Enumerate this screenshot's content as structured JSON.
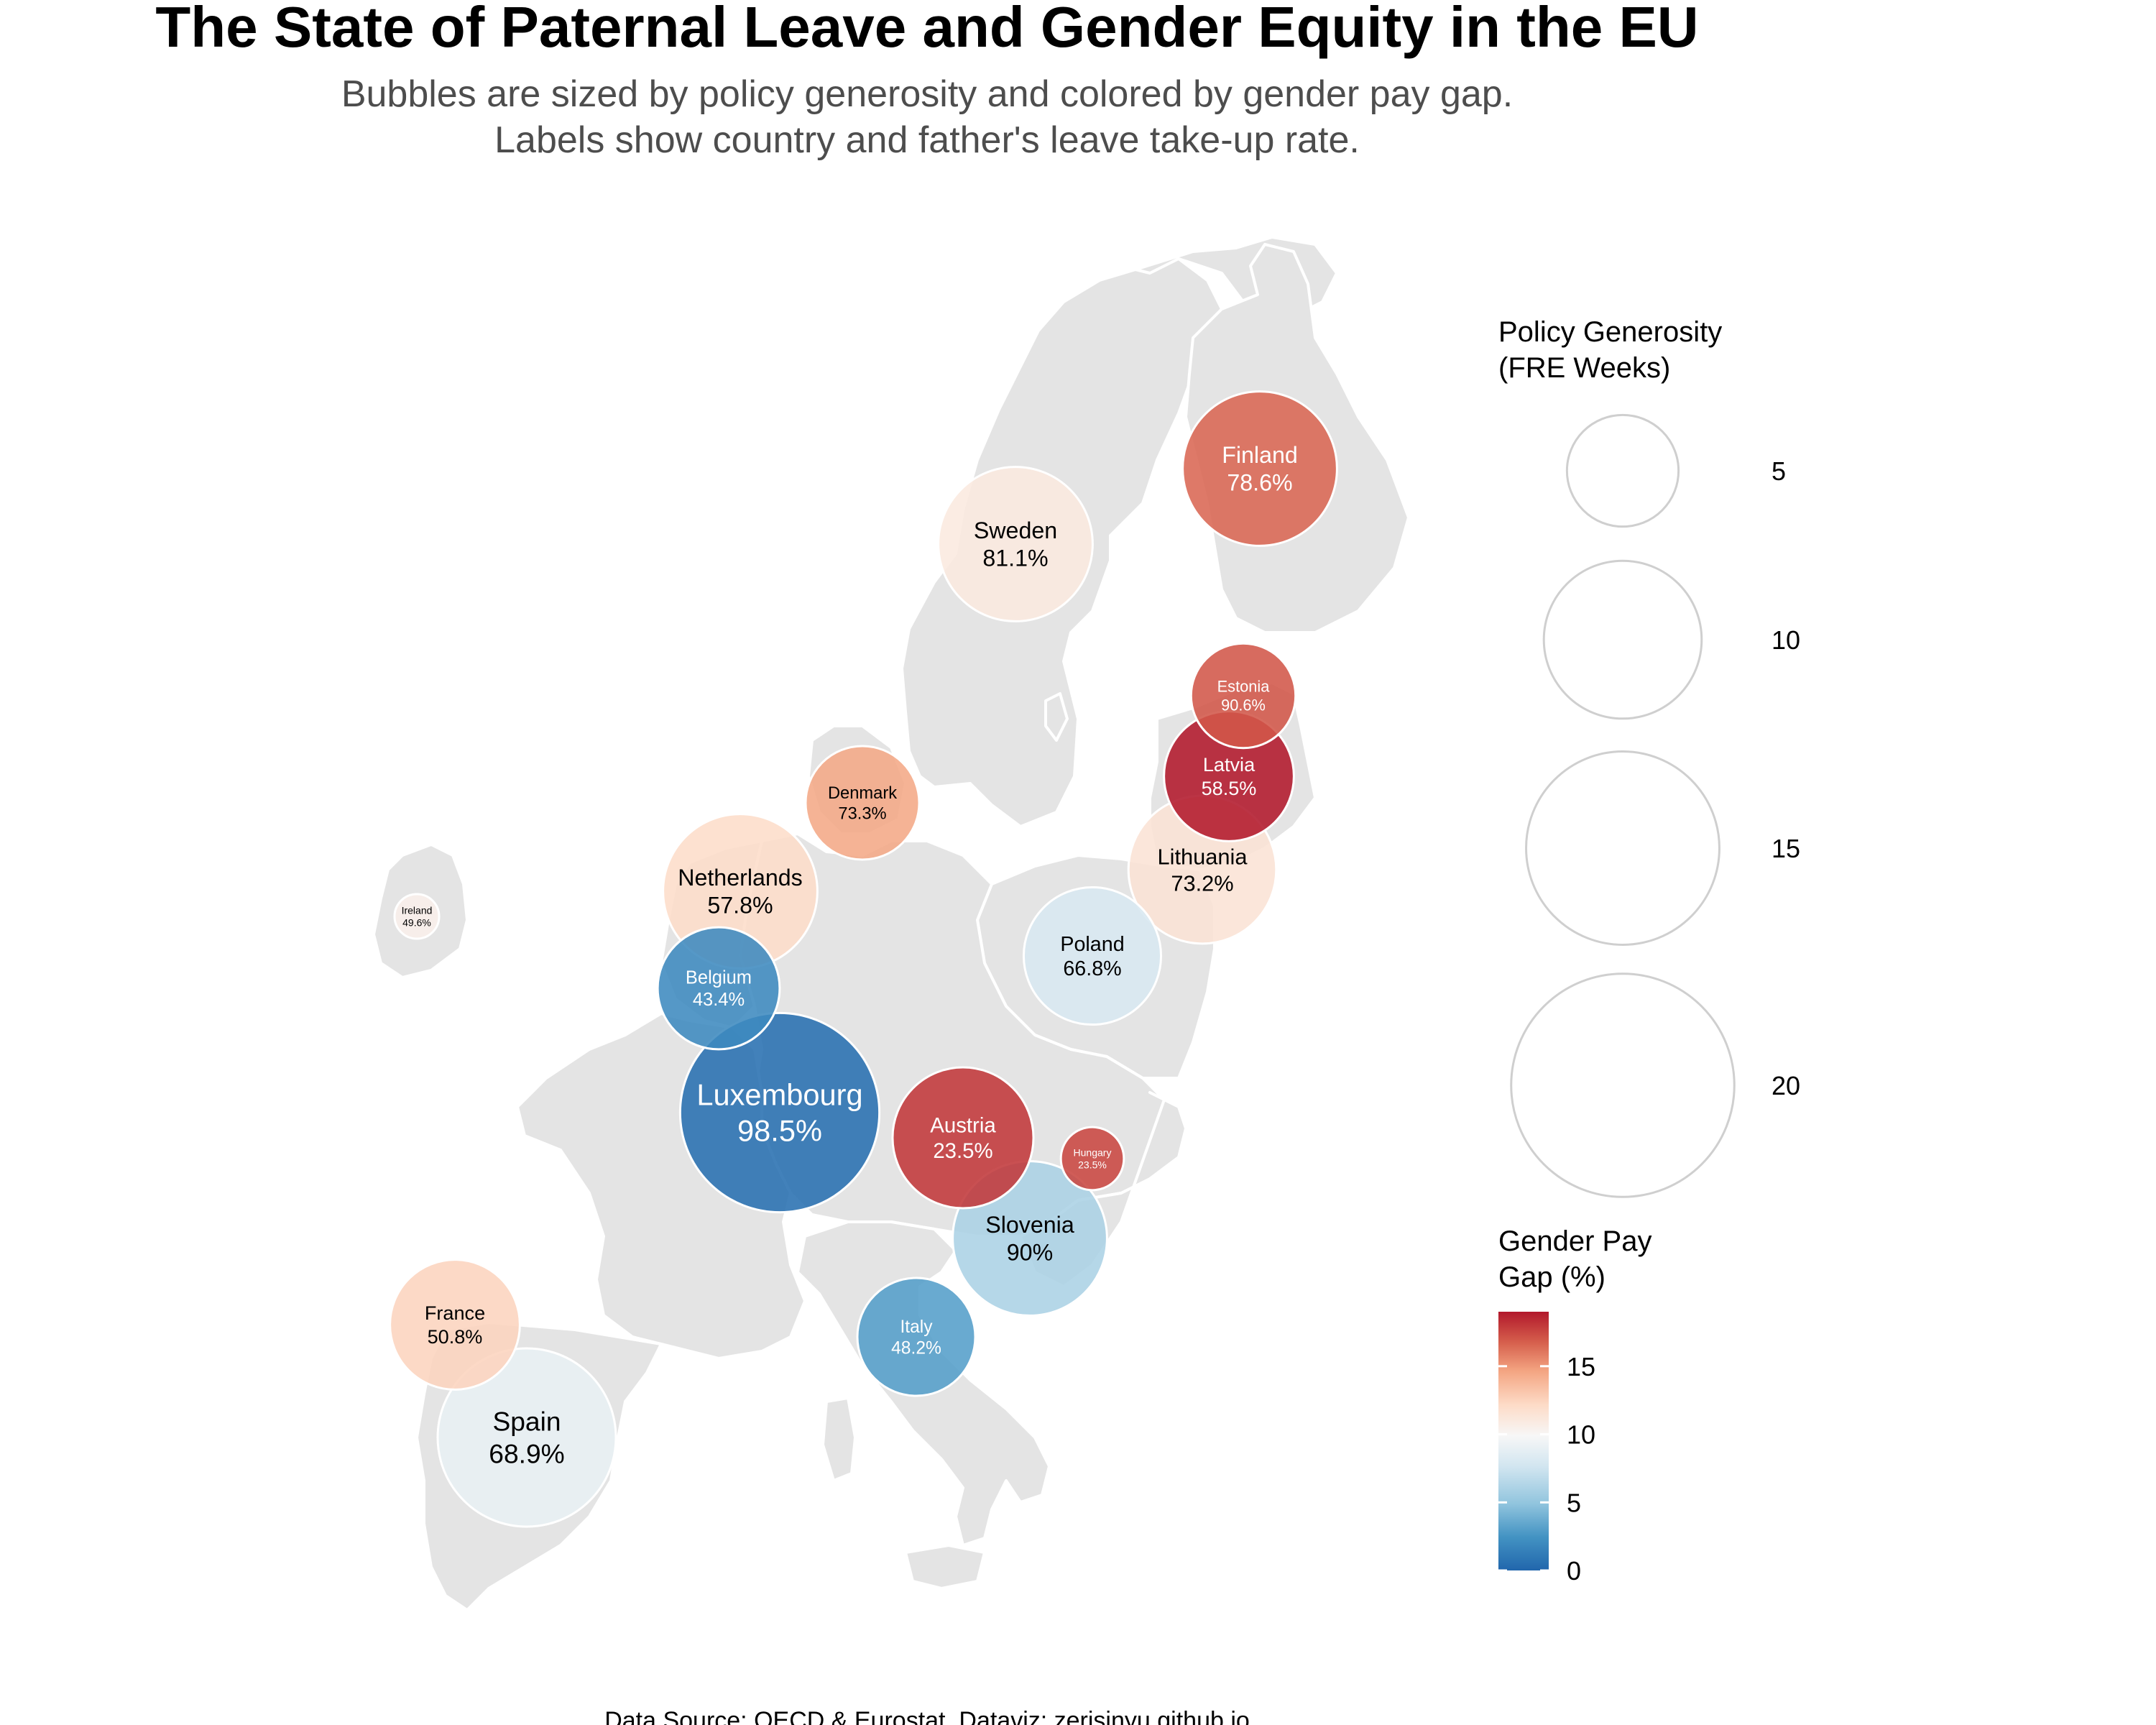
{
  "title": "The State of Paternal Leave and Gender Equity in the EU",
  "subtitle_line1": "Bubbles are sized by policy generosity and colored by gender pay gap.",
  "subtitle_line2": "Labels show country and father's leave take-up rate.",
  "caption": "Data Source: OECD & Eurostat, Dataviz: zerisinyu.github.io",
  "colors": {
    "land": "#e4e4e4",
    "border": "#ffffff",
    "bubble_outline": "#ffffff",
    "legend_circle": "#cfcfcf",
    "scale_low": "#2166ac",
    "scale_mid": "#f7f7f7",
    "scale_high": "#b2182b"
  },
  "chart_data": {
    "type": "map-bubble",
    "legend_size": {
      "title_line1": "Policy Generosity",
      "title_line2": "(FRE Weeks)",
      "breaks": [
        5,
        10,
        15,
        20
      ],
      "labels": [
        "5",
        "10",
        "15",
        "20"
      ]
    },
    "legend_color": {
      "title_line1": "Gender Pay",
      "title_line2": "Gap (%)",
      "ticks": [
        0,
        5,
        10,
        15
      ],
      "labels": [
        "0",
        "5",
        "10",
        "15"
      ],
      "range": [
        0,
        19
      ]
    },
    "points": [
      {
        "country": "Luxembourg",
        "take_up_label": "98.5%",
        "take_up": 98.5,
        "fre_weeks": 20,
        "pay_gap": 0.5
      },
      {
        "country": "Spain",
        "take_up_label": "68.9%",
        "take_up": 68.9,
        "fre_weeks": 16,
        "pay_gap": 9
      },
      {
        "country": "Netherlands",
        "take_up_label": "57.8%",
        "take_up": 57.8,
        "fre_weeks": 12,
        "pay_gap": 12
      },
      {
        "country": "Finland",
        "take_up_label": "78.6%",
        "take_up": 78.6,
        "fre_weeks": 12,
        "pay_gap": 16.5
      },
      {
        "country": "Sweden",
        "take_up_label": "81.1%",
        "take_up": 81.1,
        "fre_weeks": 12,
        "pay_gap": 11
      },
      {
        "country": "Slovenia",
        "take_up_label": "90%",
        "take_up": 90,
        "fre_weeks": 12,
        "pay_gap": 6
      },
      {
        "country": "Lithuania",
        "take_up_label": "73.2%",
        "take_up": 73.2,
        "fre_weeks": 11,
        "pay_gap": 11.5
      },
      {
        "country": "Austria",
        "take_up_label": "23.5%",
        "take_up": 23.5,
        "fre_weeks": 10,
        "pay_gap": 18
      },
      {
        "country": "Latvia",
        "take_up_label": "58.5%",
        "take_up": 58.5,
        "fre_weeks": 8.5,
        "pay_gap": 19
      },
      {
        "country": "Poland",
        "take_up_label": "66.8%",
        "take_up": 66.8,
        "fre_weeks": 9.5,
        "pay_gap": 8
      },
      {
        "country": "France",
        "take_up_label": "50.8%",
        "take_up": 50.8,
        "fre_weeks": 8.5,
        "pay_gap": 12.5
      },
      {
        "country": "Belgium",
        "take_up_label": "43.4%",
        "take_up": 43.4,
        "fre_weeks": 7.5,
        "pay_gap": 2
      },
      {
        "country": "Italy",
        "take_up_label": "48.2%",
        "take_up": 48.2,
        "fre_weeks": 7,
        "pay_gap": 3
      },
      {
        "country": "Denmark",
        "take_up_label": "73.3%",
        "take_up": 73.3,
        "fre_weeks": 6.5,
        "pay_gap": 14.5
      },
      {
        "country": "Estonia",
        "take_up_label": "90.6%",
        "take_up": 90.6,
        "fre_weeks": 5.5,
        "pay_gap": 17
      },
      {
        "country": "Hungary",
        "take_up_label": "23.5%",
        "take_up": 23.5,
        "fre_weeks": 2,
        "pay_gap": 17.5
      },
      {
        "country": "Ireland",
        "take_up_label": "49.6%",
        "take_up": 49.6,
        "fre_weeks": 1,
        "pay_gap": 10.5
      }
    ]
  }
}
